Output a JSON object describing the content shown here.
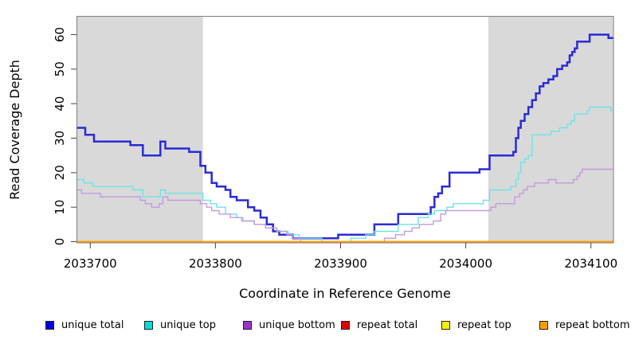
{
  "chart_data": {
    "type": "line",
    "step": true,
    "title": "",
    "xlabel": "Coordinate in Reference Genome",
    "ylabel": "Read Coverage Depth",
    "xlim": [
      2033689,
      2034118
    ],
    "ylim": [
      0,
      60
    ],
    "grid": "off",
    "legend_position": "bottom",
    "x_ticks": [
      2033700,
      2033800,
      2033900,
      2034000,
      2034100
    ],
    "x_tick_labels": [
      "2033700",
      "2033800",
      "2033900",
      "2034000",
      "2034100"
    ],
    "y_ticks": [
      0,
      10,
      20,
      30,
      40,
      50,
      60
    ],
    "y_tick_labels": [
      "0",
      "10",
      "20",
      "30",
      "40",
      "50",
      "60"
    ],
    "shaded_regions": [
      {
        "x1": 2033689,
        "x2": 2033790,
        "color": "#D9D9D9"
      },
      {
        "x1": 2034018,
        "x2": 2034118,
        "color": "#D9D9D9"
      }
    ],
    "series": [
      {
        "name": "unique total",
        "color": "#0000DD",
        "line_color": "#2B2BD5",
        "line_width": 2.5,
        "points": [
          [
            2033689,
            33
          ],
          [
            2033696,
            31
          ],
          [
            2033703,
            29
          ],
          [
            2033732,
            28
          ],
          [
            2033742,
            25
          ],
          [
            2033756,
            29
          ],
          [
            2033760,
            27
          ],
          [
            2033779,
            26
          ],
          [
            2033788,
            22
          ],
          [
            2033792,
            20
          ],
          [
            2033797,
            17
          ],
          [
            2033801,
            16
          ],
          [
            2033808,
            15
          ],
          [
            2033812,
            13
          ],
          [
            2033817,
            12
          ],
          [
            2033826,
            10
          ],
          [
            2033831,
            9
          ],
          [
            2033836,
            7
          ],
          [
            2033841,
            5
          ],
          [
            2033846,
            3
          ],
          [
            2033851,
            2
          ],
          [
            2033862,
            1
          ],
          [
            2033898,
            2
          ],
          [
            2033927,
            5
          ],
          [
            2033946,
            8
          ],
          [
            2033972,
            10
          ],
          [
            2033975,
            13
          ],
          [
            2033978,
            14
          ],
          [
            2033981,
            16
          ],
          [
            2033987,
            20
          ],
          [
            2034011,
            21
          ],
          [
            2034019,
            25
          ],
          [
            2034038,
            26
          ],
          [
            2034040,
            30
          ],
          [
            2034042,
            33
          ],
          [
            2034044,
            35
          ],
          [
            2034047,
            37
          ],
          [
            2034050,
            39
          ],
          [
            2034053,
            41
          ],
          [
            2034056,
            43
          ],
          [
            2034059,
            45
          ],
          [
            2034062,
            46
          ],
          [
            2034066,
            47
          ],
          [
            2034070,
            48
          ],
          [
            2034073,
            50
          ],
          [
            2034077,
            51
          ],
          [
            2034081,
            52
          ],
          [
            2034083,
            54
          ],
          [
            2034085,
            55
          ],
          [
            2034087,
            56
          ],
          [
            2034089,
            58
          ],
          [
            2034099,
            60
          ],
          [
            2034114,
            59
          ],
          [
            2034118,
            59
          ]
        ]
      },
      {
        "name": "unique top",
        "color": "#00DDDD",
        "line_color": "#6FE3E3",
        "line_width": 1.4,
        "points": [
          [
            2033689,
            18
          ],
          [
            2033695,
            17
          ],
          [
            2033702,
            16
          ],
          [
            2033734,
            15
          ],
          [
            2033742,
            13
          ],
          [
            2033756,
            15
          ],
          [
            2033760,
            14
          ],
          [
            2033790,
            12
          ],
          [
            2033796,
            11
          ],
          [
            2033801,
            10
          ],
          [
            2033808,
            8
          ],
          [
            2033817,
            7
          ],
          [
            2033822,
            6
          ],
          [
            2033831,
            5
          ],
          [
            2033840,
            4
          ],
          [
            2033849,
            3
          ],
          [
            2033858,
            2
          ],
          [
            2033867,
            1
          ],
          [
            2033885,
            0
          ],
          [
            2033908,
            1
          ],
          [
            2033920,
            2
          ],
          [
            2033927,
            3
          ],
          [
            2033946,
            5
          ],
          [
            2033962,
            7
          ],
          [
            2033970,
            8
          ],
          [
            2033975,
            9
          ],
          [
            2033985,
            10
          ],
          [
            2033990,
            11
          ],
          [
            2034014,
            12
          ],
          [
            2034019,
            15
          ],
          [
            2034036,
            16
          ],
          [
            2034040,
            18
          ],
          [
            2034042,
            20
          ],
          [
            2034044,
            23
          ],
          [
            2034047,
            24
          ],
          [
            2034050,
            25
          ],
          [
            2034053,
            31
          ],
          [
            2034068,
            32
          ],
          [
            2034075,
            33
          ],
          [
            2034081,
            34
          ],
          [
            2034084,
            35
          ],
          [
            2034087,
            37
          ],
          [
            2034097,
            38
          ],
          [
            2034099,
            39
          ],
          [
            2034116,
            38
          ],
          [
            2034118,
            38
          ]
        ]
      },
      {
        "name": "unique bottom",
        "color": "#9933CC",
        "line_color": "#C49AE0",
        "line_width": 1.4,
        "points": [
          [
            2033689,
            15
          ],
          [
            2033693,
            14
          ],
          [
            2033708,
            13
          ],
          [
            2033740,
            12
          ],
          [
            2033744,
            11
          ],
          [
            2033749,
            10
          ],
          [
            2033755,
            11
          ],
          [
            2033758,
            13
          ],
          [
            2033762,
            12
          ],
          [
            2033788,
            11
          ],
          [
            2033793,
            10
          ],
          [
            2033797,
            9
          ],
          [
            2033803,
            8
          ],
          [
            2033812,
            7
          ],
          [
            2033821,
            6
          ],
          [
            2033831,
            5
          ],
          [
            2033840,
            4
          ],
          [
            2033849,
            3
          ],
          [
            2033857,
            2
          ],
          [
            2033862,
            1
          ],
          [
            2033868,
            0
          ],
          [
            2033935,
            1
          ],
          [
            2033944,
            2
          ],
          [
            2033951,
            3
          ],
          [
            2033957,
            4
          ],
          [
            2033963,
            5
          ],
          [
            2033974,
            6
          ],
          [
            2033980,
            8
          ],
          [
            2033984,
            9
          ],
          [
            2034020,
            10
          ],
          [
            2034024,
            11
          ],
          [
            2034039,
            13
          ],
          [
            2034043,
            14
          ],
          [
            2034046,
            15
          ],
          [
            2034049,
            16
          ],
          [
            2034055,
            17
          ],
          [
            2034066,
            18
          ],
          [
            2034072,
            17
          ],
          [
            2034086,
            18
          ],
          [
            2034089,
            19
          ],
          [
            2034091,
            20
          ],
          [
            2034093,
            21
          ],
          [
            2034118,
            21
          ]
        ]
      },
      {
        "name": "repeat total",
        "color": "#DD0000",
        "line_color": "#DD0000",
        "line_width": 1.4,
        "points": [
          [
            2033689,
            0
          ],
          [
            2034118,
            0
          ]
        ]
      },
      {
        "name": "repeat top",
        "color": "#FFEE00",
        "line_color": "#FFEE00",
        "line_width": 1.4,
        "points": [
          [
            2033689,
            0
          ],
          [
            2034118,
            0
          ]
        ]
      },
      {
        "name": "repeat bottom",
        "color": "#FF9D00",
        "line_color": "#FF9D00",
        "line_width": 2,
        "points": [
          [
            2033689,
            0
          ],
          [
            2034118,
            0
          ]
        ]
      }
    ]
  }
}
